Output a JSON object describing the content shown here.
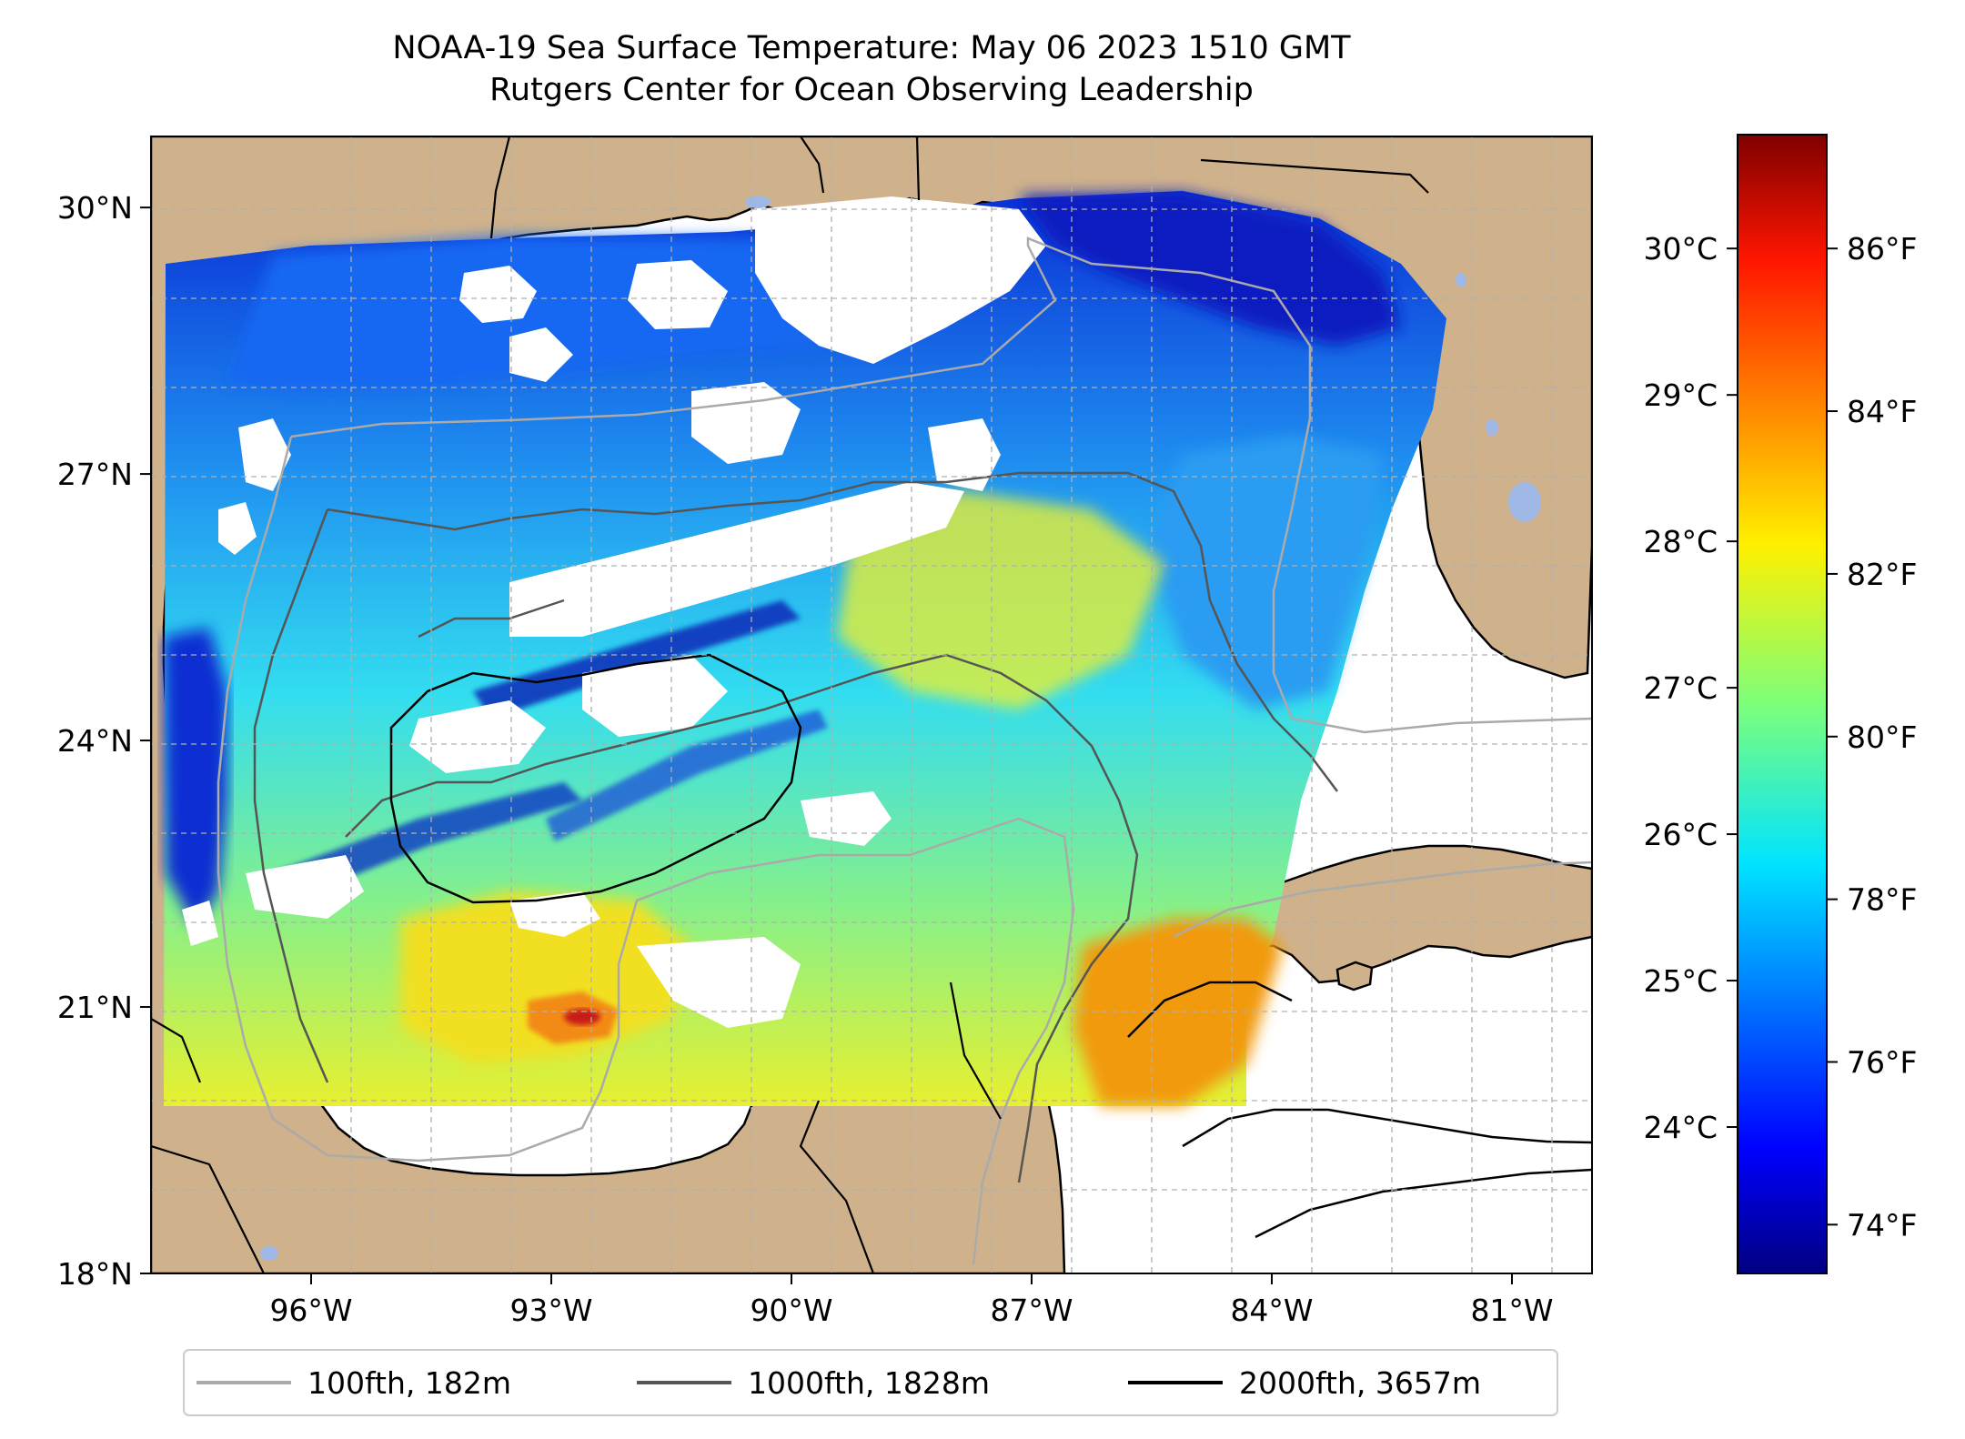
{
  "title": {
    "line1": "NOAA-19 Sea Surface Temperature: May 06 2023 1510 GMT",
    "line2": "Rutgers Center for Ocean Observing Leadership"
  },
  "map": {
    "lon_range": [
      -98.0,
      -80.0
    ],
    "lat_range": [
      18.0,
      30.8
    ],
    "gridlines": true,
    "x_ticks": [
      {
        "value": -96,
        "label": "96°W"
      },
      {
        "value": -93,
        "label": "93°W"
      },
      {
        "value": -90,
        "label": "90°W"
      },
      {
        "value": -87,
        "label": "87°W"
      },
      {
        "value": -84,
        "label": "84°W"
      },
      {
        "value": -81,
        "label": "81°W"
      }
    ],
    "y_ticks": [
      {
        "value": 18,
        "label": "18°N"
      },
      {
        "value": 21,
        "label": "21°N"
      },
      {
        "value": 24,
        "label": "24°N"
      },
      {
        "value": 27,
        "label": "27°N"
      },
      {
        "value": 30,
        "label": "30°N"
      }
    ],
    "colors": {
      "land": "#cfb28c",
      "lakes": "#9fb7e4",
      "no_data": "#ffffff",
      "grid": "#b0b0b0"
    }
  },
  "colorbar": {
    "colormap": "jet",
    "range_f": [
      73.4,
      87.4
    ],
    "fahrenheit_ticks": [
      {
        "value": 74,
        "label": "74°F"
      },
      {
        "value": 76,
        "label": "76°F"
      },
      {
        "value": 78,
        "label": "78°F"
      },
      {
        "value": 80,
        "label": "80°F"
      },
      {
        "value": 82,
        "label": "82°F"
      },
      {
        "value": 84,
        "label": "84°F"
      },
      {
        "value": 86,
        "label": "86°F"
      }
    ],
    "celsius_ticks": [
      {
        "value": 24,
        "label": "24°C"
      },
      {
        "value": 25,
        "label": "25°C"
      },
      {
        "value": 26,
        "label": "26°C"
      },
      {
        "value": 27,
        "label": "27°C"
      },
      {
        "value": 28,
        "label": "28°C"
      },
      {
        "value": 29,
        "label": "29°C"
      },
      {
        "value": 30,
        "label": "30°C"
      }
    ]
  },
  "legend": {
    "placement": "bottom-center",
    "items": [
      {
        "label": "100fth, 182m",
        "color": "#aaaaaa"
      },
      {
        "label": "1000fth, 1828m",
        "color": "#555555"
      },
      {
        "label": "2000fth, 3657m",
        "color": "#000000"
      }
    ]
  }
}
